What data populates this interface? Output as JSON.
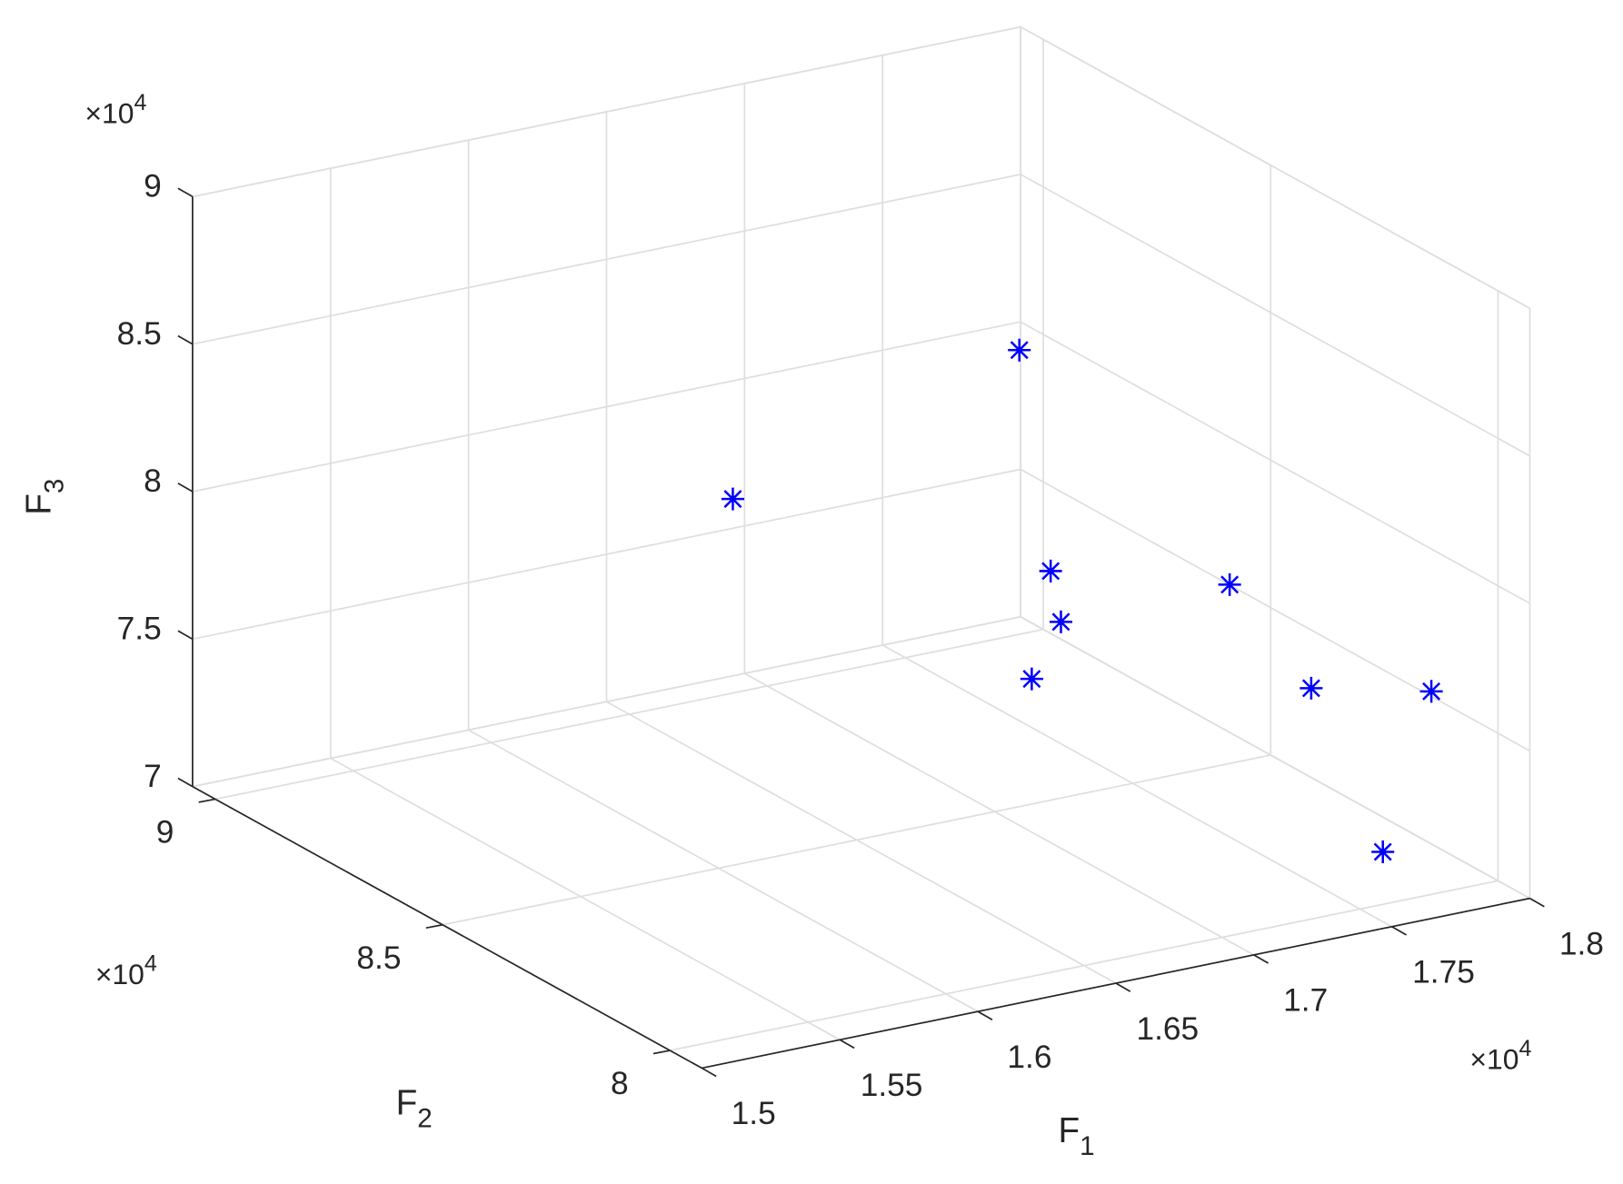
{
  "chart_data": {
    "type": "scatter3d",
    "xlabel": {
      "base": "F",
      "sub": "1"
    },
    "ylabel": {
      "base": "F",
      "sub": "2"
    },
    "zlabel": {
      "base": "F",
      "sub": "3"
    },
    "xexponent": {
      "base": "×10",
      "sup": "4"
    },
    "yexponent": {
      "base": "×10",
      "sup": "4"
    },
    "zexponent": {
      "base": "×10",
      "sup": "4"
    },
    "xlim": [
      15000,
      18000
    ],
    "ylim": [
      79300,
      90500
    ],
    "zlim": [
      70000,
      90000
    ],
    "xticks": [
      {
        "value": 15000,
        "label": "1.5"
      },
      {
        "value": 15500,
        "label": "1.55"
      },
      {
        "value": 16000,
        "label": "1.6"
      },
      {
        "value": 16500,
        "label": "1.65"
      },
      {
        "value": 17000,
        "label": "1.7"
      },
      {
        "value": 17500,
        "label": "1.75"
      },
      {
        "value": 18000,
        "label": "1.8"
      }
    ],
    "yticks": [
      {
        "value": 80000,
        "label": "8"
      },
      {
        "value": 85000,
        "label": "8.5"
      },
      {
        "value": 90000,
        "label": "9"
      }
    ],
    "zticks": [
      {
        "value": 70000,
        "label": "7"
      },
      {
        "value": 75000,
        "label": "7.5"
      },
      {
        "value": 80000,
        "label": "8"
      },
      {
        "value": 85000,
        "label": "8.5"
      },
      {
        "value": 90000,
        "label": "9"
      }
    ],
    "grid": true,
    "series": [
      {
        "color": "#0000ff",
        "marker": "asterisk",
        "x": [
          17811,
          16404,
          17740,
          17685,
          17118,
          17835,
          17946,
          17920,
          17652
        ],
        "y": [
          89380,
          87140,
          88260,
          87700,
          84900,
          84900,
          83780,
          80980,
          80420
        ],
        "z": [
          80360,
          79920,
          73960,
          72820,
          74360,
          76180,
          73410,
          75740,
          71290
        ]
      }
    ]
  }
}
